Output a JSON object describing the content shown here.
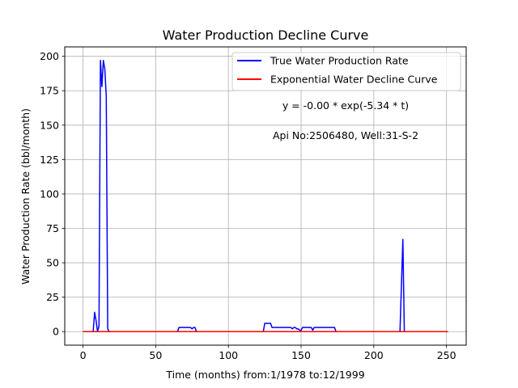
{
  "chart_data": {
    "type": "line",
    "title": "Water Production Decline Curve",
    "xlabel": "Time (months) from:1/1978 to:12/1999",
    "ylabel": "Water Production Rate (bbl/month)",
    "xlim": [
      -12.55,
      263.55
    ],
    "ylim": [
      -9.85,
      206.85
    ],
    "xticks": [
      0,
      50,
      100,
      150,
      200,
      250
    ],
    "yticks": [
      0,
      25,
      50,
      75,
      100,
      125,
      150,
      175,
      200
    ],
    "grid": true,
    "legend_position": "top-right",
    "annotations": [
      "y = -0.00 * exp(-5.34 * t)",
      "Api No:2506480, Well:31-S-2"
    ],
    "series": [
      {
        "name": "True Water Production Rate",
        "color": "#0000ff",
        "x": [
          0,
          7,
          8,
          9,
          10,
          11,
          12,
          13,
          14,
          15,
          16,
          17,
          18,
          64,
          65,
          66,
          73,
          74,
          75,
          76,
          77,
          78,
          79,
          124,
          125,
          126,
          129,
          130,
          131,
          142,
          143,
          144,
          145,
          146,
          147,
          148,
          149,
          150,
          151,
          152,
          153,
          154,
          155,
          156,
          157,
          158,
          159,
          160,
          161,
          162,
          173,
          174,
          175,
          218,
          219,
          220,
          221,
          222,
          251
        ],
        "y": [
          0,
          0,
          14,
          8,
          0,
          4,
          197,
          178,
          197,
          191,
          171,
          2,
          0,
          0,
          0,
          3,
          3,
          3,
          2,
          3,
          3,
          0,
          0,
          0,
          6,
          6,
          6,
          3,
          3,
          3,
          3,
          2,
          3,
          3,
          2,
          2,
          1,
          1,
          3,
          3,
          3,
          3,
          3,
          3,
          3,
          1,
          3,
          3,
          3,
          3,
          3,
          0,
          0,
          0,
          33,
          67,
          0,
          0,
          0
        ]
      },
      {
        "name": "Exponential Water Decline Curve",
        "color": "#ff0000",
        "x": [
          0,
          251
        ],
        "y": [
          0,
          0
        ]
      }
    ]
  }
}
